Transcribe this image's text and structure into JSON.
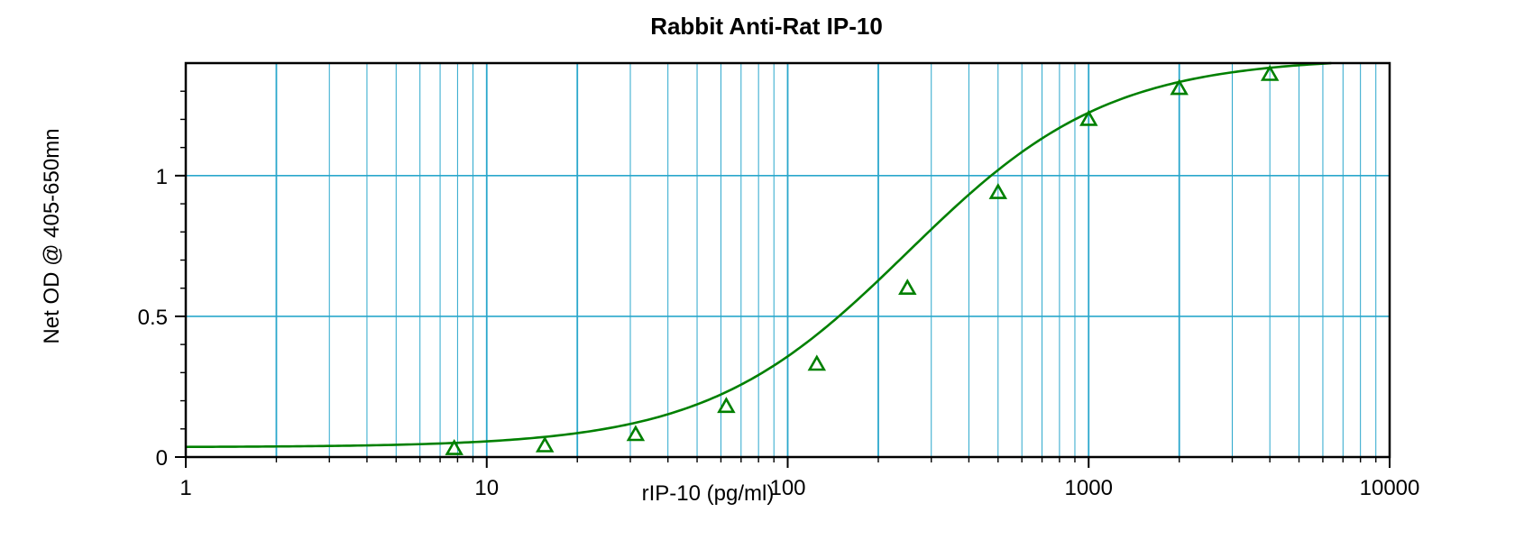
{
  "chart_data": {
    "type": "scatter",
    "title": "Rabbit Anti-Rat IP-10",
    "xlabel": "rIP-10 (pg/ml)",
    "ylabel": "Net OD @ 405-650mn",
    "x_scale": "log",
    "xlim": [
      1,
      10000
    ],
    "ylim": [
      0,
      1.4
    ],
    "x_ticks": [
      {
        "value": 1,
        "label": "1"
      },
      {
        "value": 10,
        "label": "10"
      },
      {
        "value": 100,
        "label": "100"
      },
      {
        "value": 1000,
        "label": "1000"
      },
      {
        "value": 10000,
        "label": "10000"
      }
    ],
    "y_ticks": [
      {
        "value": 0,
        "label": "0"
      },
      {
        "value": 0.5,
        "label": "0.5"
      },
      {
        "value": 1,
        "label": "1"
      }
    ],
    "grid": true,
    "series": [
      {
        "marker": "triangle",
        "color": "#008000",
        "x": [
          7.8,
          15.6,
          31.25,
          62.5,
          125,
          250,
          500,
          1000,
          2000,
          4000
        ],
        "y": [
          0.03,
          0.04,
          0.08,
          0.18,
          0.33,
          0.6,
          0.94,
          1.2,
          1.31,
          1.36
        ]
      }
    ],
    "fit_curve": {
      "type": "4PL",
      "color": "#008000",
      "bottom": 0.035,
      "top": 1.42,
      "ec50": 250,
      "hill": 1.3,
      "x_range": [
        1,
        6400
      ]
    },
    "colors": {
      "grid": "#2aa7cc",
      "frame": "#000000",
      "series": "#008000"
    }
  }
}
